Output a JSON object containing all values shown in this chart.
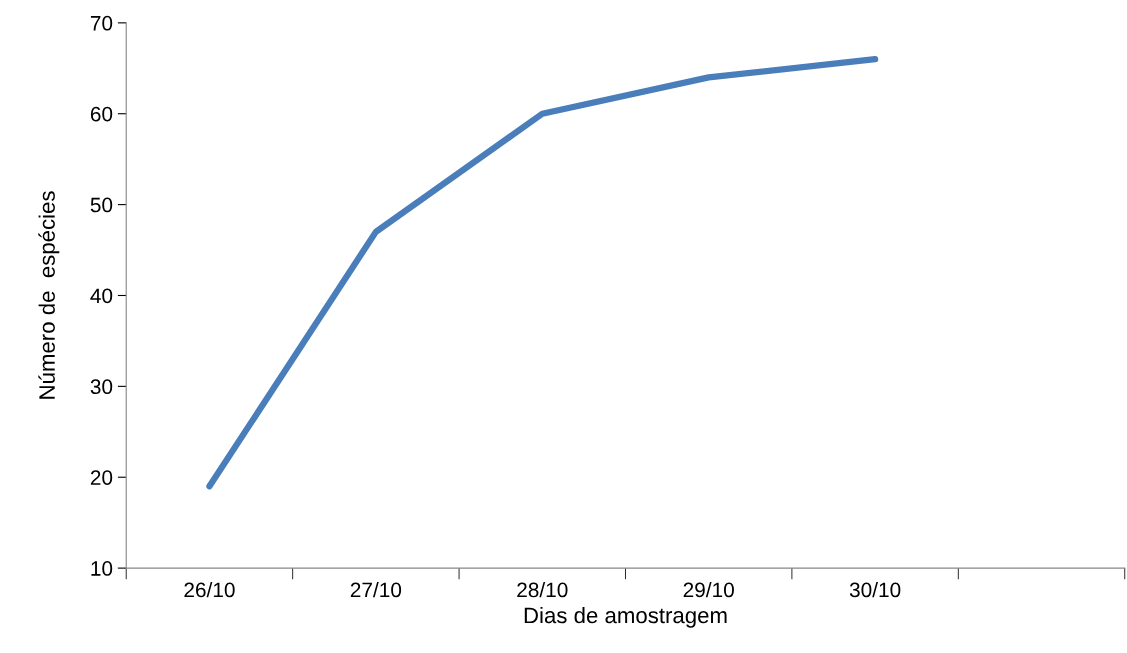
{
  "chart_data": {
    "type": "line",
    "xlabel": "Dias de amostragem",
    "ylabel": "Número de  espécies",
    "categories": [
      "26/10",
      "27/10",
      "28/10",
      "29/10",
      "30/10",
      null
    ],
    "series": [
      {
        "color": "#4a7ebb",
        "values": [
          19,
          47,
          60,
          64,
          66,
          null
        ]
      }
    ],
    "ylim": [
      10,
      70
    ],
    "yticks": [
      10,
      20,
      30,
      40,
      50,
      60,
      70
    ],
    "grid": false,
    "legend": false,
    "marker": "none",
    "line_style": "solid"
  }
}
